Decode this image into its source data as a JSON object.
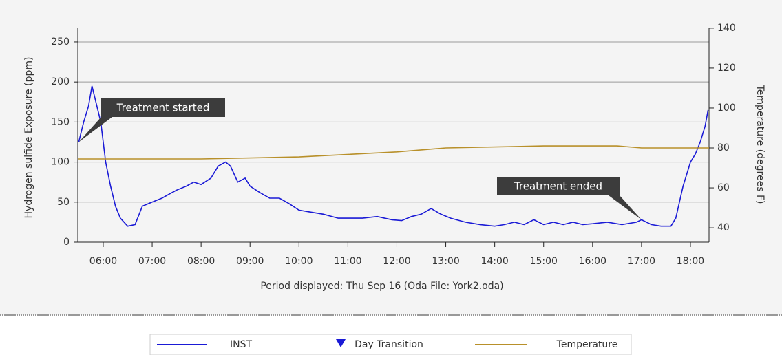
{
  "chart_data": {
    "type": "line",
    "xlabel": "Period displayed: Thu Sep 16 (Oda File: York2.oda)",
    "ylabel": "Hydrogen sulfide Exposure (ppm)",
    "y2label": "Temperature (degrees F)",
    "xlim": [
      5.48,
      18.38
    ],
    "xticks": [
      {
        "value": 6,
        "label": "06:00"
      },
      {
        "value": 7,
        "label": "07:00"
      },
      {
        "value": 8,
        "label": "08:00"
      },
      {
        "value": 9,
        "label": "09:00"
      },
      {
        "value": 10,
        "label": "10:00"
      },
      {
        "value": 11,
        "label": "11:00"
      },
      {
        "value": 12,
        "label": "12:00"
      },
      {
        "value": 13,
        "label": "13:00"
      },
      {
        "value": 14,
        "label": "14:00"
      },
      {
        "value": 15,
        "label": "15:00"
      },
      {
        "value": 16,
        "label": "16:00"
      },
      {
        "value": 17,
        "label": "17:00"
      },
      {
        "value": 18,
        "label": "18:00"
      }
    ],
    "ylim": [
      0,
      268
    ],
    "yticks": [
      0,
      50,
      100,
      150,
      200,
      250
    ],
    "y2lim": [
      32.8,
      140.3
    ],
    "y2ticks": [
      40,
      60,
      80,
      100,
      120,
      140
    ],
    "grid": true,
    "series": [
      {
        "name": "INST",
        "color": "#1a1ad6",
        "x": [
          5.5,
          5.6,
          5.7,
          5.77,
          5.85,
          5.95,
          6.05,
          6.15,
          6.25,
          6.35,
          6.5,
          6.65,
          6.8,
          7.0,
          7.2,
          7.35,
          7.5,
          7.7,
          7.85,
          8.0,
          8.2,
          8.35,
          8.5,
          8.6,
          8.75,
          8.9,
          9.0,
          9.2,
          9.4,
          9.6,
          9.8,
          10.0,
          10.2,
          10.5,
          10.8,
          11.0,
          11.3,
          11.6,
          11.9,
          12.1,
          12.3,
          12.5,
          12.7,
          12.9,
          13.1,
          13.4,
          13.7,
          14.0,
          14.2,
          14.4,
          14.6,
          14.8,
          15.0,
          15.2,
          15.4,
          15.6,
          15.8,
          16.0,
          16.3,
          16.6,
          16.9,
          17.0,
          17.2,
          17.4,
          17.6,
          17.7,
          17.85,
          18.0,
          18.1,
          18.2,
          18.3,
          18.36
        ],
        "values": [
          125,
          150,
          170,
          195,
          175,
          150,
          100,
          70,
          45,
          30,
          20,
          22,
          45,
          50,
          55,
          60,
          65,
          70,
          75,
          72,
          80,
          95,
          100,
          95,
          75,
          80,
          70,
          62,
          55,
          55,
          48,
          40,
          38,
          35,
          30,
          30,
          30,
          32,
          28,
          27,
          32,
          35,
          42,
          35,
          30,
          25,
          22,
          20,
          22,
          25,
          22,
          28,
          22,
          25,
          22,
          25,
          22,
          23,
          25,
          22,
          25,
          28,
          22,
          20,
          20,
          30,
          70,
          100,
          110,
          125,
          145,
          165
        ]
      },
      {
        "name": "Temperature",
        "color": "#b8902a",
        "axis": "y2",
        "x": [
          5.48,
          8.0,
          10.0,
          12.0,
          13.0,
          15.0,
          16.5,
          17.0,
          18.38
        ],
        "values": [
          74.5,
          74.5,
          75.5,
          78,
          80,
          81,
          81,
          80,
          80
        ]
      }
    ],
    "marker_legend": [
      {
        "name": "Day Transition",
        "color": "#1a1ad6"
      }
    ],
    "annotations": [
      {
        "text": "Treatment started",
        "x": 5.5,
        "y": 125
      },
      {
        "text": "Treatment ended",
        "x": 17.0,
        "y": 28
      }
    ]
  }
}
